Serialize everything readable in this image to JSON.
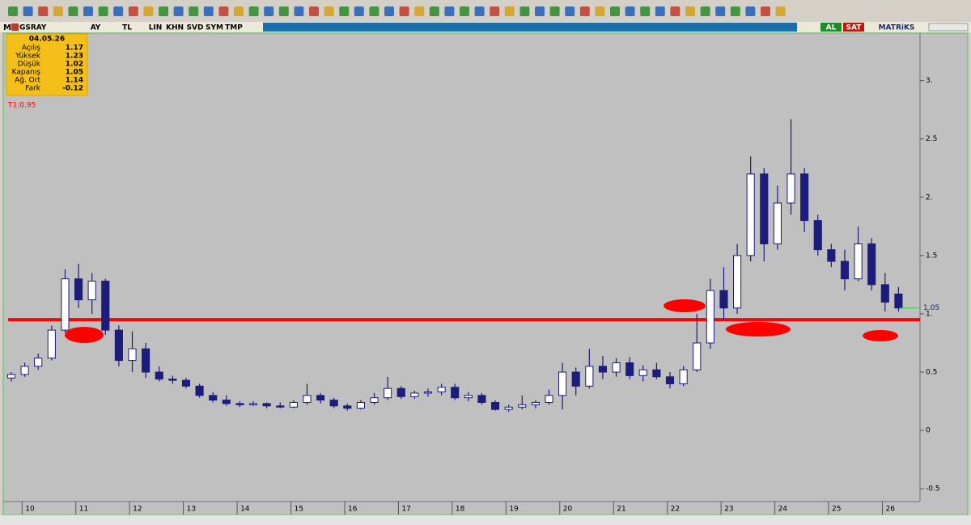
{
  "toolbar": {
    "menu": "M",
    "symbol": "GSRAY",
    "buttons": [
      "AY",
      "TL",
      "LIN",
      "KHN",
      "SVD",
      "SYM",
      "TMP"
    ],
    "buy": "AL",
    "sell": "SAT",
    "brand": "MATRiKS"
  },
  "info_panel": {
    "date": "04.05.26",
    "rows": [
      {
        "label": "Açılış",
        "value": 1.17
      },
      {
        "label": "Yüksek",
        "value": 1.23
      },
      {
        "label": "Düşük",
        "value": 1.02
      },
      {
        "label": "Kapanış",
        "value": 1.05
      },
      {
        "label": "Ağ. Ort",
        "value": 1.14
      },
      {
        "label": "Fark",
        "value": -0.12
      }
    ]
  },
  "chart_data": {
    "type": "candlestick",
    "color": "#1c1c7a",
    "x": [
      9.8,
      10.05,
      10.3,
      10.55,
      10.8,
      11.05,
      11.3,
      11.55,
      11.8,
      12.05,
      12.3,
      12.55,
      12.8,
      13.05,
      13.3,
      13.55,
      13.8,
      14.05,
      14.3,
      14.55,
      14.8,
      15.05,
      15.3,
      15.55,
      15.8,
      16.05,
      16.3,
      16.55,
      16.8,
      17.05,
      17.3,
      17.55,
      17.8,
      18.05,
      18.3,
      18.55,
      18.8,
      19.05,
      19.3,
      19.55,
      19.8,
      20.05,
      20.3,
      20.55,
      20.8,
      21.05,
      21.3,
      21.55,
      21.8,
      22.05,
      22.3,
      22.55,
      22.8,
      23.05,
      23.3,
      23.55,
      23.8,
      24.05,
      24.3,
      24.55,
      24.8,
      25.05,
      25.3,
      25.55,
      25.8,
      26.05,
      26.3
    ],
    "open": [
      0.45,
      0.48,
      0.55,
      0.62,
      0.86,
      1.3,
      1.12,
      1.28,
      0.86,
      0.6,
      0.7,
      0.5,
      0.44,
      0.43,
      0.38,
      0.3,
      0.26,
      0.23,
      0.22,
      0.23,
      0.21,
      0.2,
      0.24,
      0.3,
      0.26,
      0.21,
      0.19,
      0.24,
      0.28,
      0.36,
      0.29,
      0.32,
      0.33,
      0.37,
      0.28,
      0.3,
      0.24,
      0.18,
      0.2,
      0.22,
      0.24,
      0.3,
      0.5,
      0.38,
      0.55,
      0.5,
      0.58,
      0.47,
      0.52,
      0.46,
      0.4,
      0.52,
      0.75,
      1.2,
      1.05,
      1.5,
      2.2,
      1.6,
      1.95,
      2.2,
      1.8,
      1.55,
      1.45,
      1.3,
      1.6,
      1.25,
      1.17
    ],
    "high": [
      0.5,
      0.58,
      0.66,
      0.9,
      1.38,
      1.43,
      1.35,
      1.3,
      0.9,
      0.85,
      0.75,
      0.55,
      0.47,
      0.45,
      0.4,
      0.33,
      0.3,
      0.25,
      0.25,
      0.24,
      0.24,
      0.26,
      0.4,
      0.32,
      0.28,
      0.23,
      0.26,
      0.32,
      0.46,
      0.38,
      0.34,
      0.36,
      0.4,
      0.4,
      0.33,
      0.32,
      0.26,
      0.22,
      0.3,
      0.26,
      0.35,
      0.58,
      0.54,
      0.7,
      0.64,
      0.62,
      0.63,
      0.56,
      0.58,
      0.5,
      0.55,
      1.0,
      1.3,
      1.4,
      1.6,
      2.35,
      2.25,
      2.1,
      2.67,
      2.25,
      1.85,
      1.6,
      1.55,
      1.75,
      1.65,
      1.35,
      1.23
    ],
    "low": [
      0.42,
      0.46,
      0.52,
      0.6,
      0.84,
      1.05,
      1.0,
      0.82,
      0.55,
      0.5,
      0.45,
      0.42,
      0.4,
      0.36,
      0.28,
      0.24,
      0.21,
      0.2,
      0.21,
      0.19,
      0.19,
      0.19,
      0.22,
      0.23,
      0.19,
      0.17,
      0.18,
      0.22,
      0.26,
      0.27,
      0.27,
      0.29,
      0.3,
      0.26,
      0.25,
      0.22,
      0.17,
      0.16,
      0.18,
      0.19,
      0.22,
      0.18,
      0.3,
      0.36,
      0.44,
      0.46,
      0.44,
      0.42,
      0.44,
      0.36,
      0.38,
      0.5,
      0.7,
      0.95,
      1.0,
      1.45,
      1.45,
      1.55,
      1.85,
      1.7,
      1.5,
      1.4,
      1.2,
      1.28,
      1.2,
      1.02,
      1.02
    ],
    "close": [
      0.48,
      0.55,
      0.62,
      0.86,
      1.3,
      1.12,
      1.28,
      0.86,
      0.6,
      0.7,
      0.5,
      0.44,
      0.43,
      0.38,
      0.3,
      0.26,
      0.23,
      0.22,
      0.23,
      0.21,
      0.2,
      0.24,
      0.3,
      0.26,
      0.21,
      0.19,
      0.24,
      0.28,
      0.36,
      0.29,
      0.32,
      0.33,
      0.37,
      0.28,
      0.3,
      0.24,
      0.18,
      0.2,
      0.22,
      0.24,
      0.3,
      0.5,
      0.38,
      0.55,
      0.5,
      0.58,
      0.47,
      0.52,
      0.46,
      0.4,
      0.52,
      0.75,
      1.2,
      1.05,
      1.5,
      2.2,
      1.6,
      1.95,
      2.2,
      1.8,
      1.55,
      1.45,
      1.3,
      1.6,
      1.25,
      1.1,
      1.05
    ],
    "xlim": [
      9.74,
      26.7
    ],
    "xticks": [
      10,
      11,
      12,
      13,
      14,
      15,
      16,
      17,
      18,
      19,
      20,
      21,
      22,
      23,
      24,
      25,
      26
    ],
    "ylim": [
      -0.61,
      3.4
    ],
    "yticks": [
      {
        "value": 3,
        "label": "3."
      },
      2.5,
      {
        "value": 2,
        "label": "2."
      },
      1.5,
      {
        "value": 1,
        "label": "1."
      },
      0.5,
      0,
      -0.5
    ],
    "reference_line": {
      "value": 0.95,
      "label": "T1:0.95",
      "color": "#ff0000"
    },
    "last_price": 1.05,
    "last_price_color": "#2ecc40"
  }
}
